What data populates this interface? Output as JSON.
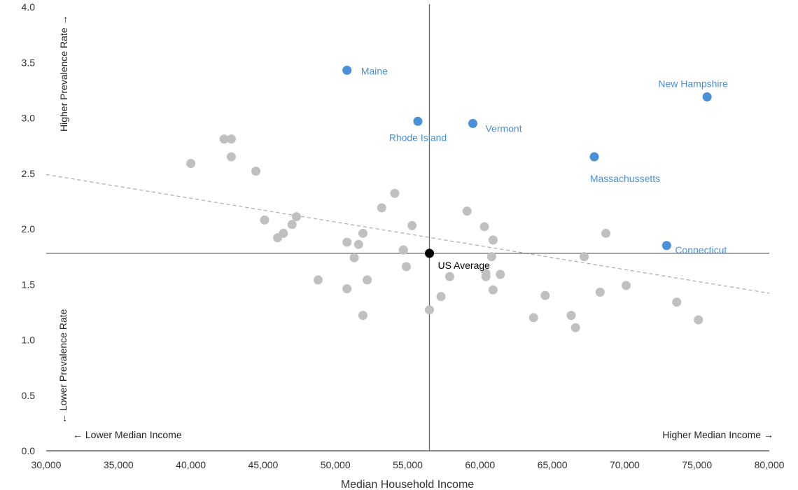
{
  "chart_data": {
    "type": "scatter",
    "xlabel": "Median Household Income",
    "xlim": [
      30000,
      80000
    ],
    "ylim": [
      0,
      4.0
    ],
    "x_ticks": [
      "30,000",
      "35,000",
      "40,000",
      "45,000",
      "50,000",
      "55,000",
      "60,000",
      "65,000",
      "70,000",
      "75,000",
      "80,000"
    ],
    "y_ticks": [
      "0.0",
      "0.5",
      "1.0",
      "1.5",
      "2.0",
      "2.5",
      "3.0",
      "3.5",
      "4.0"
    ],
    "quadrant_labels": {
      "higher_prevalence": "Higher Prevalence Rate →",
      "lower_prevalence": "← Lower Prevalence Rate",
      "lower_income": "← Lower Median Income",
      "higher_income": "Higher Median Income →"
    },
    "reference": {
      "label": "US Average",
      "x": 56500,
      "y": 1.78,
      "color": "#000000"
    },
    "trendline": {
      "style": "dashed",
      "color": "#aaaaaa",
      "x": [
        30000,
        80000
      ],
      "y": [
        2.49,
        1.42
      ]
    },
    "colors": {
      "other": "#c0c0c0",
      "highlight": "#4a90d9",
      "axis": "#666666"
    },
    "highlighted": [
      {
        "name": "Maine",
        "x": 50800,
        "y": 3.43
      },
      {
        "name": "Rhode Island",
        "x": 55700,
        "y": 2.97
      },
      {
        "name": "Vermont",
        "x": 59500,
        "y": 2.95
      },
      {
        "name": "New Hampshire",
        "x": 75700,
        "y": 3.19
      },
      {
        "name": "Massachussetts",
        "x": 67900,
        "y": 2.65
      },
      {
        "name": "Connecticut",
        "x": 72900,
        "y": 1.85
      }
    ],
    "others": [
      [
        40000,
        2.59
      ],
      [
        42300,
        2.81
      ],
      [
        42800,
        2.81
      ],
      [
        42800,
        2.65
      ],
      [
        44500,
        2.52
      ],
      [
        45100,
        2.08
      ],
      [
        46000,
        1.92
      ],
      [
        46400,
        1.96
      ],
      [
        47000,
        2.04
      ],
      [
        47300,
        2.11
      ],
      [
        48800,
        1.54
      ],
      [
        50800,
        1.88
      ],
      [
        50800,
        1.46
      ],
      [
        51300,
        1.74
      ],
      [
        51600,
        1.86
      ],
      [
        51900,
        1.96
      ],
      [
        51900,
        1.22
      ],
      [
        52200,
        1.54
      ],
      [
        53200,
        2.19
      ],
      [
        54100,
        2.32
      ],
      [
        54700,
        1.81
      ],
      [
        54900,
        1.66
      ],
      [
        55300,
        2.03
      ],
      [
        56500,
        1.27
      ],
      [
        57300,
        1.39
      ],
      [
        57900,
        1.57
      ],
      [
        59100,
        2.16
      ],
      [
        60300,
        2.02
      ],
      [
        60400,
        1.6
      ],
      [
        60400,
        1.57
      ],
      [
        60800,
        1.75
      ],
      [
        60900,
        1.9
      ],
      [
        60900,
        1.45
      ],
      [
        61400,
        1.59
      ],
      [
        63700,
        1.2
      ],
      [
        64500,
        1.4
      ],
      [
        66300,
        1.22
      ],
      [
        66600,
        1.11
      ],
      [
        67200,
        1.75
      ],
      [
        68300,
        1.43
      ],
      [
        68700,
        1.96
      ],
      [
        70100,
        1.49
      ],
      [
        73600,
        1.34
      ],
      [
        75100,
        1.18
      ]
    ]
  }
}
